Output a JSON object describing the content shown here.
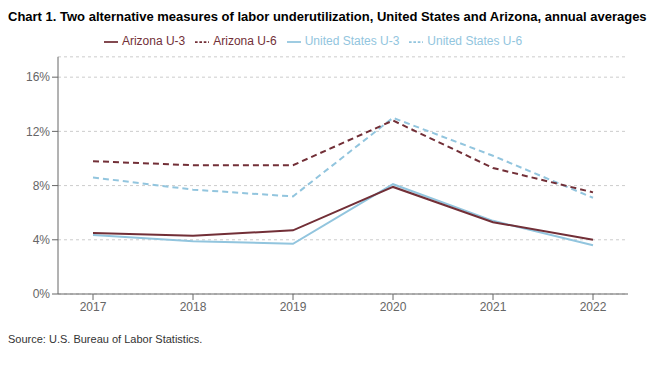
{
  "chart_data": {
    "type": "line",
    "title": "Chart 1. Two alternative measures of labor underutilization, United States and Arizona, annual averages",
    "source": "Source: U.S. Bureau of Labor Statistics.",
    "x": [
      2017,
      2018,
      2019,
      2020,
      2021,
      2022
    ],
    "series": [
      {
        "name": "United States U-3",
        "color": "#92c5de",
        "line_style": "solid",
        "values": [
          4.35,
          3.9,
          3.7,
          8.1,
          5.4,
          3.6
        ]
      },
      {
        "name": "United States U-6",
        "color": "#92c5de",
        "line_style": "dashed",
        "values": [
          8.6,
          7.7,
          7.2,
          13.0,
          10.2,
          7.1
        ]
      },
      {
        "name": "Arizona U-3",
        "color": "#722f37",
        "line_style": "solid",
        "values": [
          4.5,
          4.3,
          4.7,
          7.9,
          5.3,
          4.0
        ]
      },
      {
        "name": "Arizona U-6",
        "color": "#722f37",
        "line_style": "dashed",
        "values": [
          9.8,
          9.5,
          9.5,
          12.8,
          9.3,
          7.5
        ]
      }
    ],
    "xlim": [
      2016.65,
      2022.35
    ],
    "xticks": [
      2017,
      2018,
      2019,
      2020,
      2021,
      2022
    ],
    "ylim": [
      0,
      17.5
    ],
    "yticks": [
      {
        "value": 0,
        "label": "0%"
      },
      {
        "value": 4,
        "label": "4%"
      },
      {
        "value": 8,
        "label": "8%"
      },
      {
        "value": 12,
        "label": "12%"
      },
      {
        "value": 16,
        "label": "16%"
      }
    ],
    "grid": true,
    "legend": "top"
  }
}
